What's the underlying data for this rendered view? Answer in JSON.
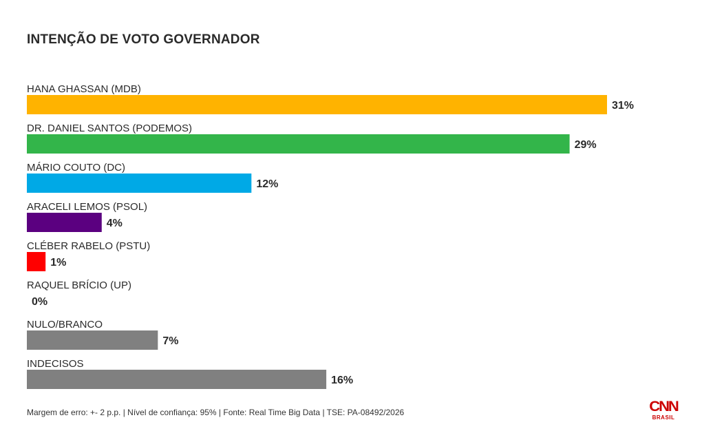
{
  "chart_data": {
    "type": "bar",
    "orientation": "horizontal",
    "title": "INTENÇÃO DE VOTO GOVERNADOR",
    "categories": [
      "HANA GHASSAN (MDB)",
      "DR. DANIEL SANTOS (PODEMOS)",
      "MÁRIO COUTO (DC)",
      "ARACELI LEMOS (PSOL)",
      "CLÉBER RABELO (PSTU)",
      "RAQUEL BRÍCIO (UP)",
      "NULO/BRANCO",
      "INDECISOS"
    ],
    "values": [
      31,
      29,
      12,
      4,
      1,
      0,
      7,
      16
    ],
    "value_labels": [
      "31%",
      "29%",
      "12%",
      "4%",
      "1%",
      "0%",
      "7%",
      "16%"
    ],
    "colors": [
      "#ffb300",
      "#33b54a",
      "#00a9e6",
      "#5b0080",
      "#ff0000",
      "#808080",
      "#808080",
      "#808080"
    ],
    "xlim": [
      0,
      31
    ],
    "grid": false,
    "legend": "none"
  },
  "footer": "Margem de erro: +- 2 p.p. | Nível de confiança: 95% | Fonte: Real Time Big Data | TSE: PA-08492/2026",
  "logo": {
    "main": "CNN",
    "sub": "BRASIL"
  }
}
